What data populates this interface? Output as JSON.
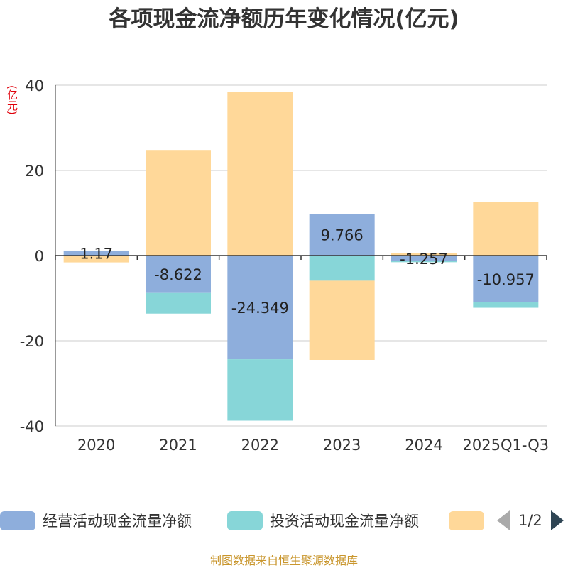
{
  "chart_data": {
    "type": "bar",
    "stacked": true,
    "title": "各项现金流净额历年变化情况(亿元)",
    "ylabel": "(亿元)",
    "categories": [
      "2020",
      "2021",
      "2022",
      "2023",
      "2024",
      "2025Q1-Q3"
    ],
    "ylim": [
      -40,
      40
    ],
    "yticks": [
      40,
      20,
      0,
      -20,
      -40
    ],
    "grid": true,
    "series": [
      {
        "name": "经营活动现金流量净额",
        "color": "#8eaedc",
        "values": [
          1.17,
          -8.622,
          -24.349,
          9.766,
          -1.257,
          -10.957
        ],
        "labels": [
          "1.17",
          "-8.622",
          "-24.349",
          "9.766",
          "-1.257",
          "-10.957"
        ]
      },
      {
        "name": "投资活动现金流量净额",
        "color": "#87d6d8",
        "values": [
          -0.1,
          -5.0,
          -14.4,
          -5.9,
          -0.3,
          -1.3
        ]
      },
      {
        "name": "",
        "color": "#ffd899",
        "values": [
          -1.5,
          24.8,
          38.5,
          -18.6,
          0.6,
          12.6
        ]
      }
    ]
  },
  "legend": {
    "items": [
      {
        "label": "经营活动现金流量净额",
        "color": "#8eaedc"
      },
      {
        "label": "投资活动现金流量净额",
        "color": "#87d6d8"
      },
      {
        "label": "",
        "color": "#ffd899"
      }
    ],
    "page": "1/2"
  },
  "footer": "制图数据来自恒生聚源数据库"
}
